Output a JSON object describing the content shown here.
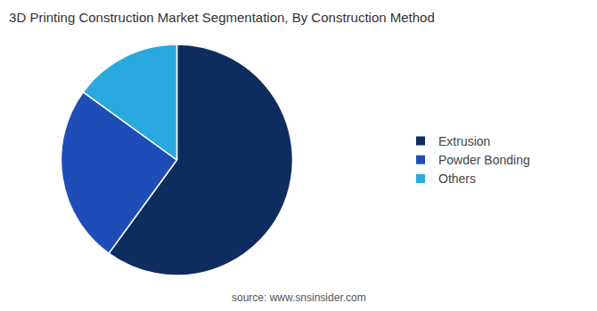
{
  "chart_data": {
    "type": "pie",
    "title": "3D Printing Construction Market Segmentation, By Construction Method",
    "categories": [
      "Extrusion",
      "Powder Bonding",
      "Others"
    ],
    "values": [
      60,
      25,
      15
    ],
    "colors": [
      "#0d2d5e",
      "#1f4db8",
      "#29a9e0"
    ],
    "legend": "right",
    "annotations": [
      "source: www.snsinsider.com"
    ]
  }
}
